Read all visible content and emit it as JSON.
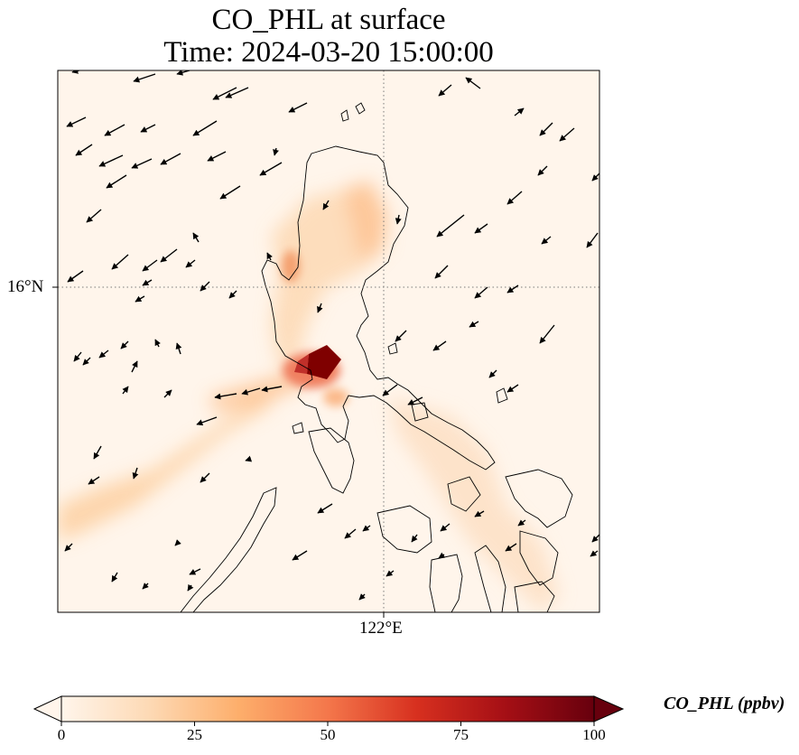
{
  "title": {
    "line1": "CO_PHL at surface",
    "line2": "Time: 2024-03-20 15:00:00"
  },
  "axes": {
    "lat_tick": "16°N",
    "lon_tick": "122°E",
    "gridlines": "dotted"
  },
  "colorbar": {
    "label": "CO_PHL (ppbv)",
    "ticks": [
      "0",
      "25",
      "50",
      "75",
      "100"
    ],
    "range": [
      0,
      100
    ],
    "colormap": [
      "#fff5eb",
      "#fdd9b4",
      "#fdae6b",
      "#f4774b",
      "#d7301f",
      "#a50f15",
      "#67000d"
    ],
    "extend": "both"
  },
  "map": {
    "field": "CO_PHL",
    "level": "surface",
    "vectors": "wind",
    "coastline_color": "#000000"
  }
}
